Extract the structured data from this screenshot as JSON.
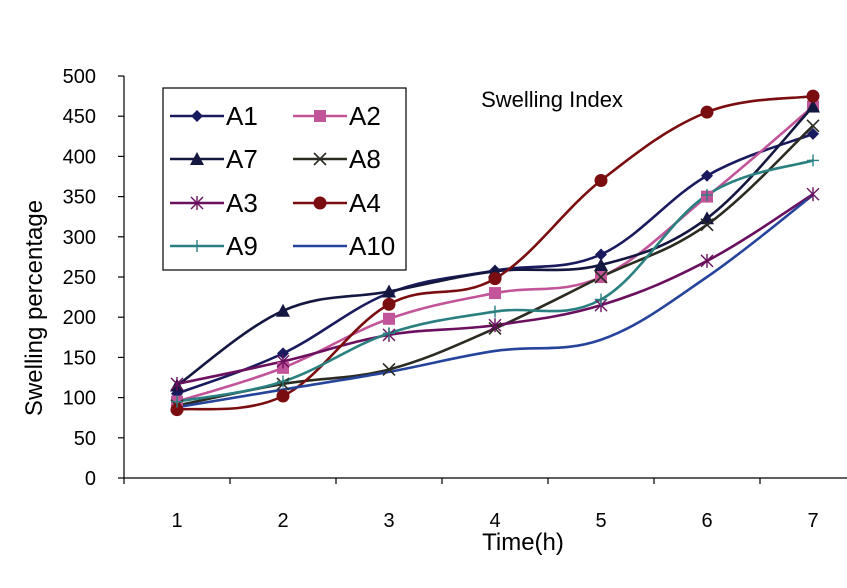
{
  "chart_data": {
    "type": "line",
    "title": "Swelling Index",
    "xlabel": "Time(h)",
    "ylabel": "Swelling percentage",
    "categories": [
      "1",
      "2",
      "3",
      "4",
      "5",
      "6",
      "7"
    ],
    "x": [
      1,
      2,
      3,
      4,
      5,
      6,
      7
    ],
    "ylim": [
      0,
      500
    ],
    "yticks": [
      0,
      50,
      100,
      150,
      200,
      250,
      300,
      350,
      400,
      450,
      500
    ],
    "grid": false,
    "legend_position": "top-left",
    "series": [
      {
        "name": "A1",
        "values": [
          105,
          155,
          230,
          258,
          278,
          376,
          428
        ],
        "color": "#1a1a5e",
        "marker": "diamond"
      },
      {
        "name": "A2",
        "values": [
          95,
          137,
          198,
          230,
          250,
          350,
          462
        ],
        "color": "#c2549a",
        "marker": "square"
      },
      {
        "name": "A7",
        "values": [
          115,
          208,
          232,
          257,
          265,
          323,
          462
        ],
        "color": "#14173f",
        "marker": "triangle"
      },
      {
        "name": "A8",
        "values": [
          90,
          117,
          135,
          186,
          250,
          315,
          438
        ],
        "color": "#2b2b22",
        "marker": "x"
      },
      {
        "name": "A3",
        "values": [
          117,
          145,
          178,
          190,
          215,
          270,
          353
        ],
        "color": "#6b0f5f",
        "marker": "star"
      },
      {
        "name": "A4",
        "values": [
          85,
          102,
          216,
          248,
          370,
          455,
          475
        ],
        "color": "#7a0d10",
        "marker": "circle"
      },
      {
        "name": "A9",
        "values": [
          95,
          120,
          180,
          207,
          222,
          352,
          395
        ],
        "color": "#2a8080",
        "marker": "plus"
      },
      {
        "name": "A10",
        "values": [
          88,
          110,
          132,
          158,
          172,
          250,
          352
        ],
        "color": "#26449c",
        "marker": "none"
      }
    ]
  }
}
